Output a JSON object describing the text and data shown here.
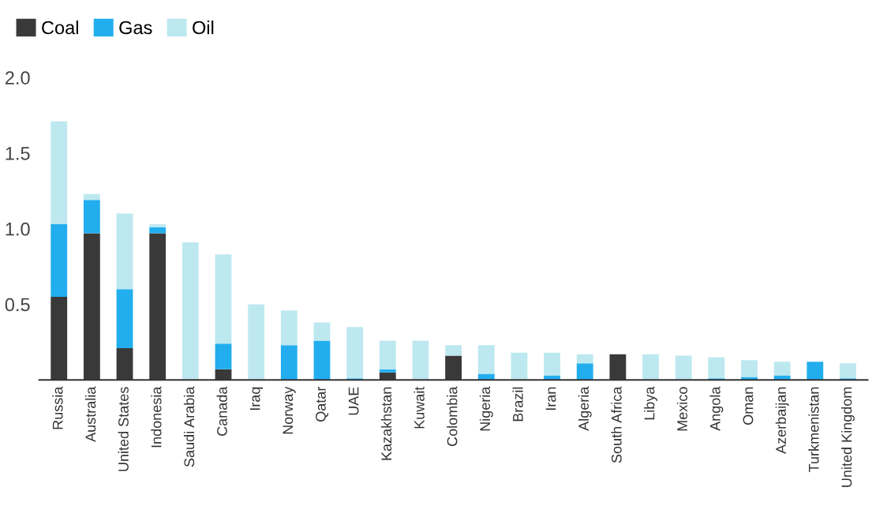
{
  "chart_data": {
    "type": "bar",
    "stacked": true,
    "legend": "top left",
    "grid": false,
    "categories": [
      "Russia",
      "Australia",
      "United States",
      "Indonesia",
      "Saudi Arabia",
      "Canada",
      "Iraq",
      "Norway",
      "Qatar",
      "UAE",
      "Kazakhstan",
      "Kuwait",
      "Colombia",
      "Nigeria",
      "Brazil",
      "Iran",
      "Algeria",
      "South Africa",
      "Libya",
      "Mexico",
      "Angola",
      "Oman",
      "Azerbaijan",
      "Turkmenistan",
      "United Kingdom"
    ],
    "series": [
      {
        "name": "Coal",
        "color": "#393939",
        "values": [
          0.55,
          0.97,
          0.21,
          0.97,
          0,
          0.07,
          0,
          0,
          0,
          0,
          0.05,
          0,
          0.16,
          0,
          0,
          0,
          0,
          0.17,
          0,
          0,
          0,
          0,
          0,
          0,
          0
        ]
      },
      {
        "name": "Gas",
        "color": "#22aeee",
        "values": [
          0.48,
          0.22,
          0.39,
          0.04,
          0,
          0.17,
          0,
          0.23,
          0.26,
          0.01,
          0.02,
          0,
          0,
          0.04,
          0,
          0.03,
          0.11,
          0,
          0,
          0,
          0.01,
          0.02,
          0.03,
          0.12,
          0.01
        ]
      },
      {
        "name": "Oil",
        "color": "#bde8f0",
        "values": [
          0.68,
          0.04,
          0.5,
          0.02,
          0.91,
          0.59,
          0.5,
          0.23,
          0.12,
          0.34,
          0.19,
          0.26,
          0.07,
          0.19,
          0.18,
          0.15,
          0.06,
          0,
          0.17,
          0.16,
          0.14,
          0.11,
          0.09,
          0,
          0.1
        ]
      }
    ],
    "ylim": [
      0,
      2.0
    ],
    "yticks": [
      {
        "value": 0.5,
        "label": "0.5"
      },
      {
        "value": 1.0,
        "label": "1.0"
      },
      {
        "value": 1.5,
        "label": "1.5"
      },
      {
        "value": 2.0,
        "label": "2.0"
      }
    ]
  }
}
